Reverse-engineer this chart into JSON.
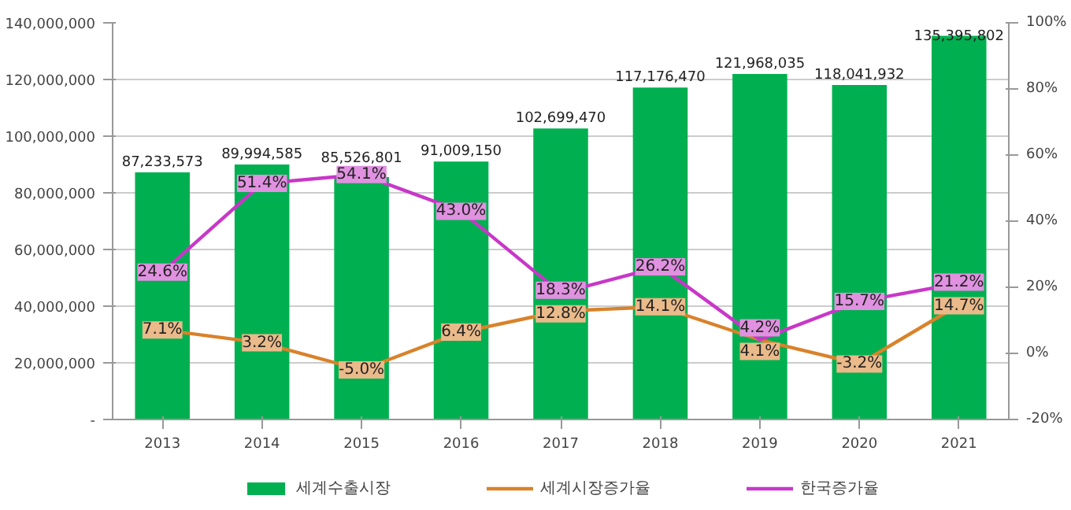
{
  "chart_data": {
    "type": "bar",
    "categories": [
      "2013",
      "2014",
      "2015",
      "2016",
      "2017",
      "2018",
      "2019",
      "2020",
      "2021"
    ],
    "series": [
      {
        "name": "세계수출시장",
        "color": "#00b050",
        "values": [
          87233573,
          89994585,
          85526801,
          91009150,
          102699470,
          117176470,
          121968035,
          118041932,
          135395802
        ],
        "value_labels": [
          "87,233,573",
          "89,994,585",
          "85,526,801",
          "91,009,150",
          "102,699,470",
          "117,176,470",
          "121,968,035",
          "118,041,932",
          "135,395,802"
        ]
      },
      {
        "name": "세계시장증가율",
        "type": "line",
        "axis": "y2",
        "color": "#d9822b",
        "values": [
          7.1,
          3.2,
          -5.0,
          6.4,
          12.8,
          14.1,
          4.1,
          -3.2,
          14.7
        ],
        "value_labels": [
          "7.1%",
          "3.2%",
          "-5.0%",
          "6.4%",
          "12.8%",
          "14.1%",
          "4.1%",
          "-3.2%",
          "14.7%"
        ]
      },
      {
        "name": "한국증가율",
        "type": "line",
        "axis": "y2",
        "color": "#c837c8",
        "values": [
          24.6,
          51.4,
          54.1,
          43.0,
          18.3,
          26.2,
          4.2,
          15.7,
          21.2
        ],
        "value_labels": [
          "24.6%",
          "51.4%",
          "54.1%",
          "43.0%",
          "18.3%",
          "26.2%",
          "4.2%",
          "15.7%",
          "21.2%"
        ]
      }
    ],
    "ylim": [
      0,
      140000000
    ],
    "yticks": [
      {
        "value": 0,
        "label": "-"
      },
      {
        "value": 20000000,
        "label": "20,000,000"
      },
      {
        "value": 40000000,
        "label": "40,000,000"
      },
      {
        "value": 60000000,
        "label": "60,000,000"
      },
      {
        "value": 80000000,
        "label": "80,000,000"
      },
      {
        "value": 100000000,
        "label": "100,000,000"
      },
      {
        "value": 120000000,
        "label": "120,000,000"
      },
      {
        "value": 140000000,
        "label": "140,000,000"
      }
    ],
    "y2lim": [
      -20,
      100
    ],
    "y2ticks": [
      {
        "value": -20,
        "label": "-20%"
      },
      {
        "value": 0,
        "label": "0%"
      },
      {
        "value": 20,
        "label": "20%"
      },
      {
        "value": 40,
        "label": "40%"
      },
      {
        "value": 60,
        "label": "60%"
      },
      {
        "value": 80,
        "label": "80%"
      },
      {
        "value": 100,
        "label": "100%"
      }
    ],
    "grid": "y",
    "legend": "bottom",
    "line_style": "solid"
  }
}
